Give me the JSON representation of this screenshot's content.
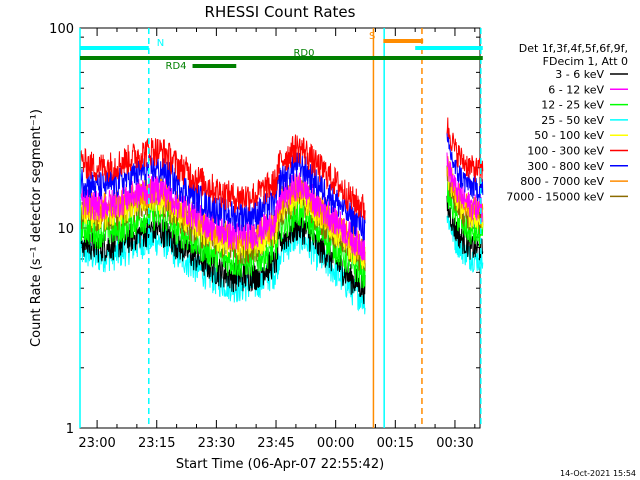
{
  "chart_data": {
    "type": "line",
    "title": "RHESSI Count Rates",
    "xlabel": "Start Time (06-Apr-07 22:55:42)",
    "ylabel": "Count Rate (s⁻¹ detector segment⁻¹)",
    "yscale": "log",
    "ylim": [
      1,
      100
    ],
    "xlim_minutes": [
      -4.3,
      36.3
    ],
    "x_ticks": [
      "23:00",
      "23:15",
      "23:30",
      "23:45",
      "00:00",
      "00:15",
      "00:30"
    ],
    "y_ticks": [
      "1",
      "10",
      "100"
    ],
    "legend_header": [
      "Det 1f,3f,4f,5f,6f,9f,",
      "FDecim 1, Att 0"
    ],
    "legend_position": "right",
    "series": [
      {
        "name": "3 - 6 keV",
        "color": "#000000",
        "level": 0.62
      },
      {
        "name": "6 - 12 keV",
        "color": "#ff00ff",
        "level": 1.0
      },
      {
        "name": "12 - 25 keV",
        "color": "#00ff00",
        "level": 0.73
      },
      {
        "name": "25 - 50 keV",
        "color": "#00ffff",
        "level": 0.55
      },
      {
        "name": "50 - 100 keV",
        "color": "#ffff00",
        "level": 0.9
      },
      {
        "name": "100 - 300 keV",
        "color": "#ff0000",
        "level": 1.55
      },
      {
        "name": "300 - 800 keV",
        "color": "#0000ff",
        "level": 1.25
      },
      {
        "name": "800 - 7000 keV",
        "color": "#ff8c00",
        "level": 0.98
      },
      {
        "name": "7000 - 15000 keV",
        "color": "#8b6b00",
        "level": 0.86
      }
    ],
    "profile": {
      "x_minutes": [
        -4.3,
        0,
        5,
        10,
        14,
        17,
        20,
        25,
        30,
        35,
        40,
        45,
        46,
        48,
        50,
        52,
        55,
        60,
        62,
        64,
        66,
        67.5
      ],
      "y_base": [
        14,
        13,
        13.5,
        15,
        16,
        15.5,
        13.5,
        11.5,
        10,
        9.2,
        9.5,
        11,
        14,
        15,
        16.5,
        16,
        13.5,
        11,
        10,
        9,
        8.5,
        8
      ]
    },
    "profile2": {
      "x_minutes": [
        88,
        90,
        92,
        94,
        97
      ],
      "y_base": [
        21,
        16,
        14,
        13,
        12.5
      ]
    },
    "bars": [
      {
        "label": "N",
        "color": "#00ffff",
        "x_start_min": -4.3,
        "x_end_min": 13,
        "row": 1
      },
      {
        "label": "",
        "color": "#00ffff",
        "x_start_min": 80,
        "x_end_min": 97,
        "row": 1
      },
      {
        "label": "S",
        "color": "#ff8c00",
        "x_start_min": 72,
        "x_end_min": 82,
        "row": 0
      },
      {
        "label": "RD0",
        "color": "#008000",
        "x_start_min": -4.3,
        "x_end_min": 97,
        "row": 2
      },
      {
        "label": "RD4",
        "color": "#008000",
        "x_start_min": 24,
        "x_end_min": 35,
        "row": 3
      }
    ],
    "vlines": [
      {
        "x_min": 13,
        "color": "#00ffff",
        "style": "dashed"
      },
      {
        "x_min": 69.5,
        "color": "#ff8c00",
        "style": "solid"
      },
      {
        "x_min": 72.2,
        "color": "#00ffff",
        "style": "solid"
      },
      {
        "x_min": 81.7,
        "color": "#ff8c00",
        "style": "dashed"
      },
      {
        "x_min": 96.5,
        "color": "#00ffff",
        "style": "dashed"
      },
      {
        "x_min": -4.3,
        "color": "#00ffff",
        "style": "solid"
      }
    ]
  },
  "footer": {
    "timestamp": "14-Oct-2021 15:54"
  }
}
